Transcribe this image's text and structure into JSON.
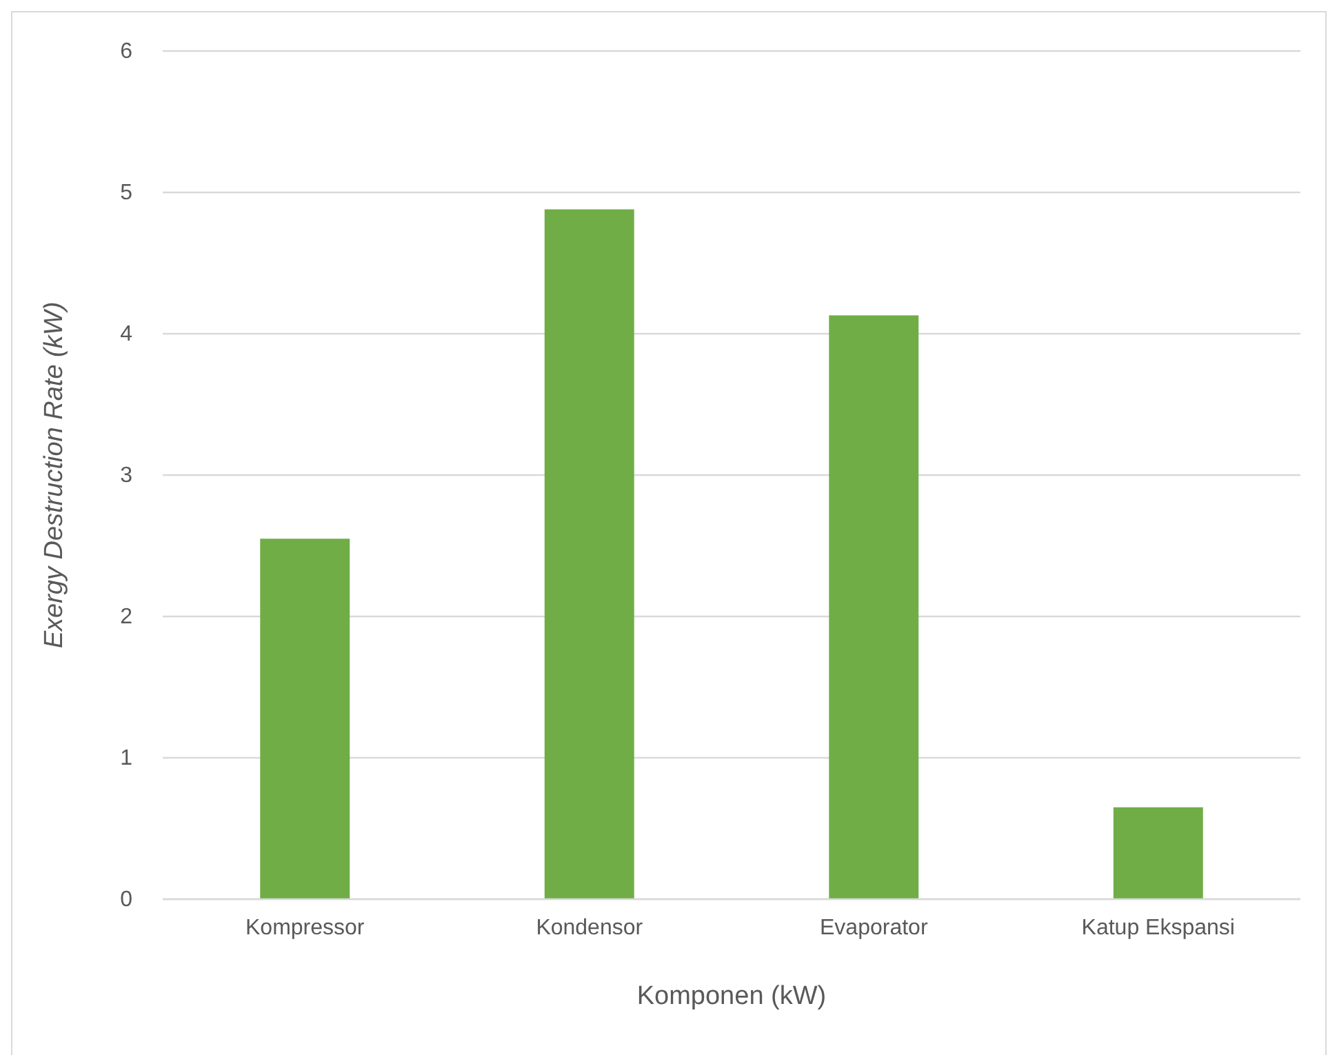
{
  "chart_data": {
    "type": "bar",
    "xlabel": "Komponen (kW)",
    "ylabel": "Exergy Destruction Rate (kW)",
    "categories": [
      "Kompressor",
      "Kondensor",
      "Evaporator",
      "Katup Ekspansi"
    ],
    "values": [
      2.55,
      4.88,
      4.13,
      0.65
    ],
    "color": "#70ad47",
    "ylim": [
      0,
      6
    ],
    "yticks": [
      0,
      1,
      2,
      3,
      4,
      5,
      6
    ],
    "grid": "y"
  }
}
